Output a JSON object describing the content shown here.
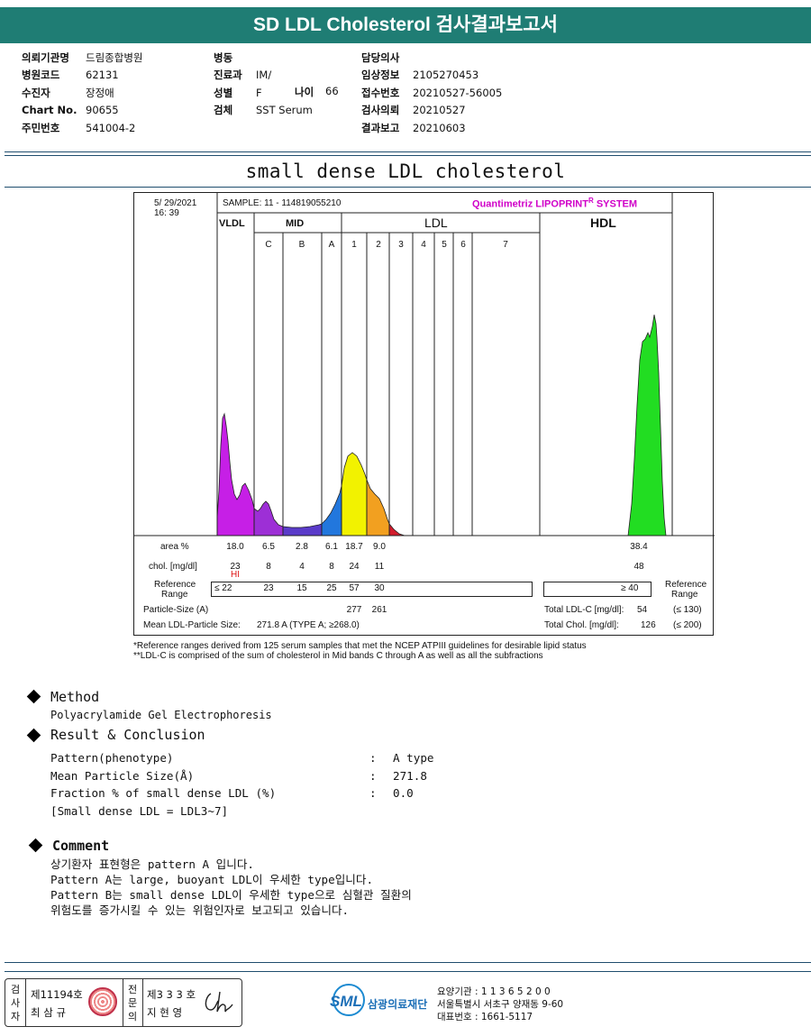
{
  "header": {
    "title": "SD LDL Cholesterol 검사결과보고서"
  },
  "info": {
    "col1": [
      {
        "label": "의뢰기관명",
        "value": "드림종합병원"
      },
      {
        "label": "병원코드",
        "value": "62131"
      },
      {
        "label": "수진자",
        "value": "장정애"
      },
      {
        "label": "Chart No.",
        "value": "90655"
      },
      {
        "label": "주민번호",
        "value": "541004-2"
      }
    ],
    "col2": [
      {
        "label": "병동",
        "value": ""
      },
      {
        "label": "진료과",
        "value": "IM/"
      },
      {
        "label": "성별",
        "value": "F"
      },
      {
        "label": "검체",
        "value": "SST Serum"
      }
    ],
    "age": {
      "label": "나이",
      "value": "66"
    },
    "col3": [
      {
        "label": "담당의사",
        "value": ""
      },
      {
        "label": "임상정보",
        "value": "2105270453"
      },
      {
        "label": "접수번호",
        "value": "20210527-56005"
      },
      {
        "label": "검사의뢰",
        "value": "20210527"
      },
      {
        "label": "결과보고",
        "value": "20210603"
      }
    ]
  },
  "section_title": "small dense LDL cholesterol",
  "report": {
    "date": "5/ 29/2021",
    "time": "16: 39",
    "sample": "SAMPLE:   11 - 114819055210",
    "brand": "Quantimetriz LIPOPRINT",
    "brand_mark": "R",
    "brand_suffix": "SYSTEM",
    "groups": {
      "vldl": "VLDL",
      "mid": "MID",
      "ldl": "LDL",
      "hdl": "HDL"
    },
    "bands": [
      "C",
      "B",
      "A",
      "1",
      "2",
      "3",
      "4",
      "5",
      "6",
      "7"
    ],
    "row_labels": {
      "area": "area %",
      "chol": "chol. [mg/dl]",
      "ref1": "Reference",
      "ref2": "Range",
      "particle": "Particle-Size (A)",
      "mean": "Mean LDL-Particle Size:"
    },
    "area": [
      "18.0",
      "6.5",
      "2.8",
      "6.1",
      "18.7",
      "9.0"
    ],
    "area_hdl": "38.4",
    "chol": [
      "23",
      "8",
      "4",
      "8",
      "24",
      "11"
    ],
    "chol_hdl": "48",
    "chol_flag": "HI",
    "ref_values": [
      "≤ 22",
      "23",
      "15",
      "25",
      "57",
      "30"
    ],
    "ref_hdl": "≥  40",
    "ref_right1": "Reference",
    "ref_right2": "Range",
    "particle": [
      "277",
      "261"
    ],
    "mean_value": "271.8  A   (TYPE A; ≥268.0)",
    "total_ldl_label": "Total LDL-C [mg/dl]:",
    "total_ldl_value": "54",
    "total_ldl_ref": "(≤ 130)",
    "total_chol_label": "Total Chol. [mg/dl]:",
    "total_chol_value": "126",
    "total_chol_ref": "(≤ 200)"
  },
  "footnotes": [
    "*Reference ranges derived from 125 serum samples that met the NCEP ATPIII guidelines for desirable lipid status",
    "**LDL-C is comprised of the sum of cholesterol in Mid bands C through A as well as all the subfractions"
  ],
  "method": {
    "heading": "Method",
    "text": "Polyacrylamide Gel Electrophoresis"
  },
  "result": {
    "heading": "Result & Conclusion",
    "rows": [
      {
        "label": "Pattern(phenotype)",
        "sep": ":",
        "value": "A type"
      },
      {
        "label": "Mean Particle Size(Å)",
        "sep": ":",
        "value": "271.8"
      },
      {
        "label": "Fraction % of small dense LDL (%)",
        "sep": ":",
        "value": "0.0"
      }
    ],
    "note": "[Small dense LDL = LDL3~7]"
  },
  "comment": {
    "heading": "Comment",
    "lines": [
      "상기환자 표현형은 pattern A 입니다.",
      "Pattern A는 large, buoyant LDL이 우세한 type입니다.",
      "Pattern B는 small dense LDL이 우세한 type으로 심혈관 질환의",
      "위험도를 증가시킬 수 있는 위험인자로 보고되고 있습니다."
    ]
  },
  "footer": {
    "tester_vlabel": [
      "검",
      "사",
      "자"
    ],
    "tester_no": "제11194호",
    "tester_name": "최 삼 규",
    "doctor_vlabel": [
      "전",
      "문",
      "의"
    ],
    "doctor_no": "제3 3 3 호",
    "doctor_name": "지 현 영",
    "logo": "SML",
    "org_name": "삼광의료재단",
    "addr_lines": [
      "요양기관 : 1 1 3 6 5 2 0 0",
      "서울특별시 서초구 양재동 9-60",
      "대표번호 : 1661-5117"
    ]
  },
  "colors": {
    "header_bg": "#1f7d74",
    "vldl": "#c61fe6",
    "mid_c": "#9d2fd6",
    "mid_b": "#5a3bc9",
    "mid_a": "#2277dd",
    "ldl1": "#f2f200",
    "ldl2": "#f2a020",
    "ldl3": "#d21c2c",
    "hdl": "#22dd22"
  }
}
